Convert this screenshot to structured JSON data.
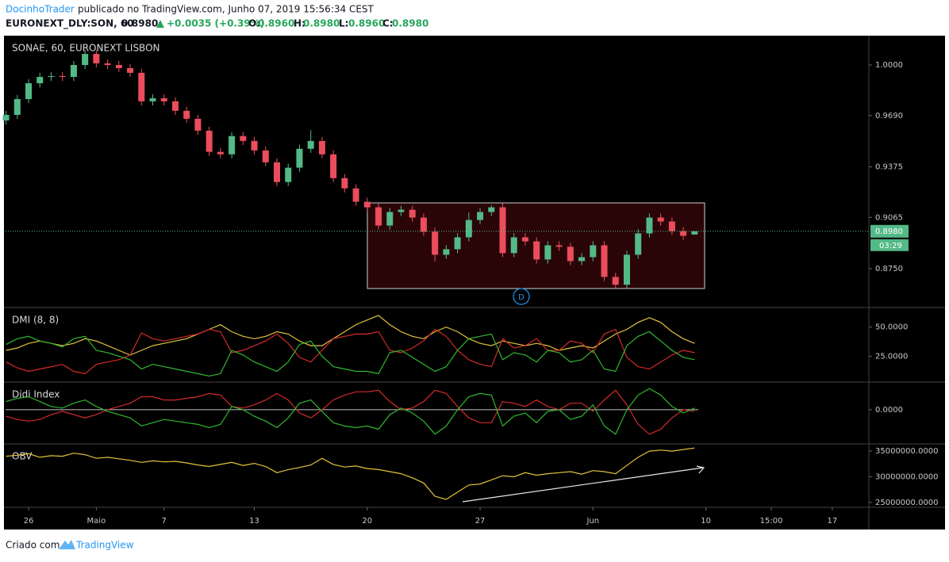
{
  "header": {
    "author": "DocinhoTrader",
    "published": "publicado no TradingView.com, Junho 07, 2019 15:56:34 CEST",
    "symbol": "EURONEXT_DLY:SON, 60",
    "price": "0.8980",
    "change": "+0.0035 (+0.39%)",
    "ohlc": [
      {
        "label": "O:",
        "value": "0.8960"
      },
      {
        "label": "H:",
        "value": "0.8980"
      },
      {
        "label": "L:",
        "value": "0.8960"
      },
      {
        "label": "C:",
        "value": "0.8980"
      }
    ]
  },
  "footer": {
    "text": "Criado com",
    "brand": "TradingView"
  },
  "chart_data": [
    {
      "type": "candlestick",
      "title": "SONAE, 60, EURONEXT LISBON",
      "up_color": "#53b987",
      "down_color": "#eb4d5c",
      "x": [
        -1,
        -0.5,
        0,
        0.5,
        1,
        1.5,
        2,
        2.5,
        3,
        3.5,
        4,
        4.5,
        5,
        5.5,
        6,
        6.5,
        7,
        7.5,
        8,
        8.5,
        9,
        9.5,
        10,
        10.5,
        11,
        11.5,
        12,
        12.5,
        13,
        13.5,
        14,
        14.5,
        15,
        15.5,
        16,
        16.5,
        17,
        17.5,
        18,
        18.5,
        19,
        19.5,
        20,
        20.5,
        21,
        21.5,
        22,
        22.5,
        23,
        23.5,
        24,
        24.5,
        25,
        25.5,
        26,
        26.5,
        27,
        27.5,
        28,
        28.5,
        29,
        29.5
      ],
      "open": [
        0.966,
        0.9694,
        0.9791,
        0.9888,
        0.9927,
        0.9932,
        0.9927,
        1.0,
        1.0068,
        1.001,
        1.0,
        0.9981,
        0.9952,
        0.9777,
        0.9796,
        0.9777,
        0.9719,
        0.967,
        0.9597,
        0.9467,
        0.9452,
        0.9564,
        0.9534,
        0.9476,
        0.9403,
        0.9282,
        0.937,
        0.9486,
        0.9534,
        0.9452,
        0.9306,
        0.9243,
        0.9161,
        0.9127,
        0.9015,
        0.9098,
        0.9112,
        0.9064,
        0.8977,
        0.8836,
        0.887,
        0.8943,
        0.9049,
        0.9098,
        0.9127,
        0.8846,
        0.8943,
        0.8918,
        0.8807,
        0.8894,
        0.8885,
        0.8797,
        0.8821,
        0.8894,
        0.87,
        0.8652,
        0.8836,
        0.8967,
        0.9064,
        0.904,
        0.8981,
        0.896
      ],
      "high": [
        0.9719,
        0.9816,
        0.9913,
        0.9952,
        0.9957,
        0.9957,
        1.0025,
        1.0093,
        1.0093,
        1.0035,
        1.0025,
        1.0006,
        0.9977,
        0.9821,
        0.9821,
        0.9802,
        0.9744,
        0.9695,
        0.9622,
        0.9492,
        0.9589,
        0.9589,
        0.9559,
        0.9501,
        0.9428,
        0.9395,
        0.9511,
        0.96,
        0.9559,
        0.9477,
        0.9331,
        0.9268,
        0.9186,
        0.9152,
        0.9123,
        0.9137,
        0.9137,
        0.9089,
        0.9002,
        0.8895,
        0.8968,
        0.9095,
        0.9123,
        0.914,
        0.9152,
        0.8968,
        0.8968,
        0.8943,
        0.8919,
        0.8919,
        0.891,
        0.8846,
        0.8919,
        0.8919,
        0.8725,
        0.8861,
        0.8992,
        0.9089,
        0.9089,
        0.9065,
        0.9006,
        0.898
      ],
      "low": [
        0.9635,
        0.9669,
        0.9766,
        0.9863,
        0.9902,
        0.9902,
        0.9902,
        0.9975,
        0.9985,
        0.9975,
        0.9956,
        0.9927,
        0.9752,
        0.9752,
        0.9752,
        0.9694,
        0.9645,
        0.9572,
        0.9442,
        0.9427,
        0.9427,
        0.9509,
        0.9451,
        0.9378,
        0.9257,
        0.9257,
        0.9345,
        0.9461,
        0.9427,
        0.9281,
        0.9218,
        0.9136,
        0.9102,
        0.899,
        0.899,
        0.9073,
        0.9039,
        0.8952,
        0.8795,
        0.8811,
        0.8845,
        0.8918,
        0.9024,
        0.9073,
        0.8821,
        0.8821,
        0.8893,
        0.8782,
        0.8782,
        0.886,
        0.8772,
        0.8772,
        0.8796,
        0.8675,
        0.8627,
        0.8627,
        0.8811,
        0.8942,
        0.9015,
        0.8956,
        0.8927,
        0.896
      ],
      "close": [
        0.9694,
        0.9791,
        0.9888,
        0.9927,
        0.9932,
        0.9927,
        1.0,
        1.0068,
        1.001,
        1.0,
        0.9981,
        0.9952,
        0.9777,
        0.9796,
        0.9777,
        0.9719,
        0.967,
        0.9597,
        0.9467,
        0.9452,
        0.9564,
        0.9534,
        0.9476,
        0.9403,
        0.9282,
        0.937,
        0.9486,
        0.9534,
        0.9452,
        0.9306,
        0.9243,
        0.9161,
        0.9127,
        0.9015,
        0.9098,
        0.9112,
        0.9064,
        0.8977,
        0.8836,
        0.887,
        0.8943,
        0.9049,
        0.9098,
        0.9127,
        0.8846,
        0.8943,
        0.8918,
        0.8807,
        0.8894,
        0.8885,
        0.8797,
        0.8821,
        0.8894,
        0.87,
        0.8652,
        0.8836,
        0.8967,
        0.9064,
        0.904,
        0.8981,
        0.8952,
        0.898
      ],
      "xlim": [
        -1.02,
        37.22
      ],
      "ylim": [
        0.8512,
        1.018
      ],
      "yticks": [
        {
          "value": 1.0,
          "label": "1.0000"
        },
        {
          "value": 0.969,
          "label": "0.9690"
        },
        0.9375,
        0.9065,
        {
          "value": 0.875,
          "label": "0.8750"
        }
      ],
      "xticks": [
        {
          "value": 0,
          "label": "26"
        },
        {
          "value": 3,
          "label": "Maio"
        },
        {
          "value": 6,
          "label": "7"
        },
        {
          "value": 10,
          "label": "13"
        },
        {
          "value": 15,
          "label": "20"
        },
        {
          "value": 20,
          "label": "27"
        },
        {
          "value": 25,
          "label": "Jun"
        },
        {
          "value": 30,
          "label": "10"
        },
        {
          "value": 32.9,
          "label": "15:00"
        },
        {
          "value": 35.6,
          "label": "17"
        }
      ],
      "last_price": {
        "value": 0.898,
        "label": "0.8980"
      },
      "countdown": "03:29",
      "marker": "D"
    },
    {
      "type": "line",
      "title": "DMI (8, 8)",
      "x": [
        -1,
        -0.5,
        0,
        0.5,
        1,
        1.5,
        2,
        2.5,
        3,
        3.5,
        4,
        4.5,
        5,
        5.5,
        6,
        6.5,
        7,
        7.5,
        8,
        8.5,
        9,
        9.5,
        10,
        10.5,
        11,
        11.5,
        12,
        12.5,
        13,
        13.5,
        14,
        14.5,
        15,
        15.5,
        16,
        16.5,
        17,
        17.5,
        18,
        18.5,
        19,
        19.5,
        20,
        20.5,
        21,
        21.5,
        22,
        22.5,
        23,
        23.5,
        24,
        24.5,
        25,
        25.5,
        26,
        26.5,
        27,
        27.5,
        28,
        28.5,
        29,
        29.5
      ],
      "series": [
        {
          "color": "#e0c33a",
          "values": [
            30,
            32,
            36,
            38,
            36,
            34,
            36,
            40,
            38,
            34,
            30,
            26,
            30,
            34,
            36,
            38,
            40,
            44,
            48,
            52,
            46,
            42,
            40,
            42,
            46,
            44,
            38,
            34,
            34,
            40,
            46,
            52,
            56,
            60,
            52,
            46,
            42,
            40,
            46,
            50,
            46,
            40,
            36,
            34,
            38,
            36,
            34,
            36,
            34,
            30,
            32,
            34,
            32,
            38,
            44,
            48,
            54,
            58,
            54,
            46,
            40,
            36
          ]
        },
        {
          "color": "#d42a2a",
          "values": [
            20,
            15,
            12,
            14,
            16,
            18,
            12,
            10,
            18,
            20,
            22,
            26,
            45,
            40,
            38,
            40,
            42,
            44,
            48,
            46,
            28,
            30,
            34,
            38,
            44,
            36,
            24,
            20,
            30,
            40,
            42,
            44,
            44,
            46,
            30,
            28,
            32,
            38,
            48,
            42,
            30,
            22,
            18,
            16,
            40,
            32,
            34,
            40,
            30,
            30,
            38,
            36,
            28,
            44,
            48,
            24,
            16,
            14,
            20,
            26,
            30,
            28
          ]
        },
        {
          "color": "#2fb82f",
          "values": [
            35,
            40,
            42,
            38,
            36,
            33,
            40,
            42,
            30,
            28,
            25,
            22,
            14,
            18,
            16,
            14,
            12,
            10,
            8,
            10,
            30,
            26,
            20,
            16,
            12,
            20,
            35,
            38,
            25,
            16,
            14,
            12,
            12,
            10,
            28,
            30,
            24,
            18,
            12,
            16,
            30,
            40,
            42,
            44,
            22,
            28,
            26,
            20,
            30,
            28,
            20,
            22,
            30,
            14,
            12,
            34,
            42,
            46,
            38,
            30,
            24,
            22
          ]
        }
      ],
      "ylim": [
        2.8,
        66.7
      ],
      "yticks": [
        {
          "value": 50,
          "label": "50.0000"
        },
        {
          "value": 25,
          "label": "25.0000"
        }
      ]
    },
    {
      "type": "line",
      "title": "Didi Index",
      "tick_line_color": "#ffffff",
      "x": [
        -1,
        -0.5,
        0,
        0.5,
        1,
        1.5,
        2,
        2.5,
        3,
        3.5,
        4,
        4.5,
        5,
        5.5,
        6,
        6.5,
        7,
        7.5,
        8,
        8.5,
        9,
        9.5,
        10,
        10.5,
        11,
        11.5,
        12,
        12.5,
        13,
        13.5,
        14,
        14.5,
        15,
        15.5,
        16,
        16.5,
        17,
        17.5,
        18,
        18.5,
        19,
        19.5,
        20,
        20.5,
        21,
        21.5,
        22,
        22.5,
        23,
        23.5,
        24,
        24.5,
        25,
        25.5,
        26,
        26.5,
        27,
        27.5,
        28,
        28.5,
        29,
        29.5
      ],
      "series": [
        {
          "color": "#d42a2a",
          "values": [
            -0.008,
            -0.012,
            -0.014,
            -0.012,
            -0.006,
            -0.002,
            -0.006,
            -0.01,
            -0.006,
            0,
            0.004,
            0.008,
            0.016,
            0.016,
            0.012,
            0.012,
            0.014,
            0.016,
            0.02,
            0.018,
            0.004,
            0.002,
            0.006,
            0.012,
            0.02,
            0.012,
            -0.004,
            -0.01,
            0,
            0.012,
            0.018,
            0.022,
            0.022,
            0.024,
            0.01,
            0,
            0.002,
            0.01,
            0.024,
            0.02,
            0.004,
            -0.01,
            -0.016,
            -0.016,
            0.01,
            0.008,
            0.004,
            0.012,
            0.004,
            0,
            0.008,
            0.008,
            -0.002,
            0.012,
            0.024,
            0.006,
            -0.018,
            -0.03,
            -0.024,
            -0.01,
            0,
            -0.002
          ]
        },
        {
          "color": "#2fb82f",
          "values": [
            0.01,
            0.014,
            0.016,
            0.01,
            0.004,
            0.002,
            0.008,
            0.012,
            0.004,
            -0.002,
            -0.006,
            -0.01,
            -0.02,
            -0.016,
            -0.012,
            -0.014,
            -0.016,
            -0.018,
            -0.022,
            -0.018,
            0.004,
            0,
            -0.008,
            -0.014,
            -0.022,
            -0.01,
            0.008,
            0.012,
            -0.002,
            -0.016,
            -0.02,
            -0.022,
            -0.02,
            -0.024,
            -0.006,
            0.002,
            -0.004,
            -0.014,
            -0.03,
            -0.02,
            0,
            0.016,
            0.02,
            0.018,
            -0.02,
            -0.008,
            -0.004,
            -0.016,
            -0.002,
            0,
            -0.012,
            -0.008,
            0.006,
            -0.02,
            -0.03,
            0,
            0.018,
            0.026,
            0.018,
            0.004,
            -0.004,
            0.002
          ]
        }
      ],
      "ylim": [
        -0.042,
        0.034
      ],
      "yticks": [
        {
          "value": 0,
          "label": "0.0000"
        }
      ]
    },
    {
      "type": "line",
      "title": "OBV",
      "x": [
        -1,
        -0.5,
        0,
        0.5,
        1,
        1.5,
        2,
        2.5,
        3,
        3.5,
        4,
        4.5,
        5,
        5.5,
        6,
        6.5,
        7,
        7.5,
        8,
        8.5,
        9,
        9.5,
        10,
        10.5,
        11,
        11.5,
        12,
        12.5,
        13,
        13.5,
        14,
        14.5,
        15,
        15.5,
        16,
        16.5,
        17,
        17.5,
        18,
        18.5,
        19,
        19.5,
        20,
        20.5,
        21,
        21.5,
        22,
        22.5,
        23,
        23.5,
        24,
        24.5,
        25,
        25.5,
        26,
        26.5,
        27,
        27.5,
        28,
        28.5,
        29,
        29.5
      ],
      "series": [
        {
          "color": "#e0c33a",
          "values": [
            34000000,
            34200000,
            34500000,
            33800000,
            34100000,
            34000000,
            34600000,
            34300000,
            33600000,
            33800000,
            33500000,
            33200000,
            32800000,
            33100000,
            32900000,
            33000000,
            32700000,
            32300000,
            32000000,
            32400000,
            32800000,
            32200000,
            32600000,
            32000000,
            30800000,
            31400000,
            31800000,
            32300000,
            33600000,
            32400000,
            31900000,
            32100000,
            31600000,
            31400000,
            31000000,
            30600000,
            29800000,
            28800000,
            26200000,
            25600000,
            27000000,
            28400000,
            28600000,
            29400000,
            30200000,
            30000000,
            30800000,
            30300000,
            30600000,
            30800000,
            31000000,
            30500000,
            31200000,
            31000000,
            30600000,
            32200000,
            33800000,
            35000000,
            35200000,
            35000000,
            35300000,
            35600000
          ]
        }
      ],
      "ylim": [
        24060000,
        36400000
      ],
      "yticks": [
        {
          "value": 35000000,
          "label": "35000000.0000"
        },
        {
          "value": 30000000,
          "label": "30000000.0000"
        },
        {
          "value": 25000000,
          "label": "25000000.0000"
        }
      ]
    }
  ]
}
